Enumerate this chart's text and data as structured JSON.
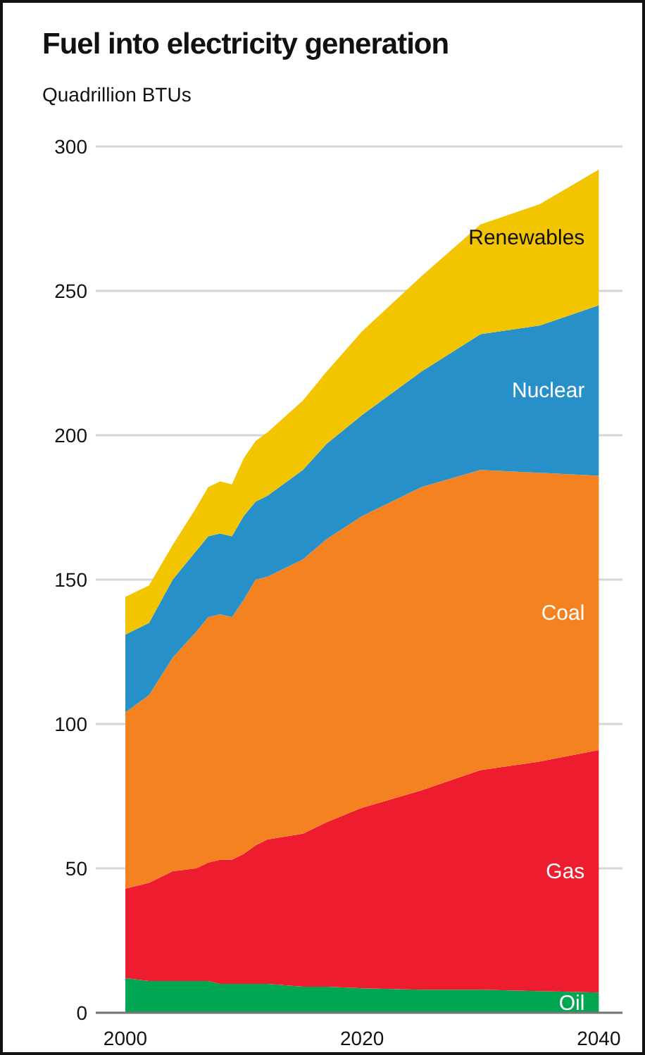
{
  "chart_data": {
    "type": "area",
    "stacked": true,
    "title": "Fuel into electricity generation",
    "subtitle": "Quadrillion BTUs",
    "x": [
      2000,
      2002,
      2004,
      2006,
      2007,
      2008,
      2009,
      2010,
      2011,
      2012,
      2015,
      2017,
      2020,
      2025,
      2030,
      2035,
      2040
    ],
    "xlim": [
      1997.5,
      2042
    ],
    "xticks": [
      2000,
      2020,
      2040
    ],
    "ylim": [
      0,
      300
    ],
    "yticks": [
      0,
      50,
      100,
      150,
      200,
      250,
      300
    ],
    "grid": "y",
    "series": [
      {
        "name": "Oil",
        "color": "#00a651",
        "values": [
          12,
          11,
          11,
          11,
          11,
          10,
          10,
          10,
          10,
          10,
          9,
          9,
          8.5,
          8,
          8,
          7.5,
          7
        ]
      },
      {
        "name": "Gas",
        "color": "#ed1c2e",
        "values": [
          31,
          34,
          38,
          39,
          41,
          43,
          43,
          45,
          48,
          50,
          53,
          57,
          62.5,
          69,
          76,
          79.5,
          84
        ]
      },
      {
        "name": "Coal",
        "color": "#f58220",
        "values": [
          61,
          65,
          74,
          82,
          85,
          85,
          84,
          88,
          92,
          91,
          95,
          98,
          101,
          105,
          104,
          100,
          95
        ]
      },
      {
        "name": "Nuclear",
        "color": "#2790c8",
        "values": [
          27,
          25,
          27,
          28,
          28,
          28,
          28,
          29,
          27,
          28,
          31,
          33,
          35,
          40,
          47,
          51,
          59
        ]
      },
      {
        "name": "Renewables",
        "color": "#f2c500",
        "values": [
          13,
          13,
          12,
          15,
          17,
          18,
          18,
          20,
          21,
          22,
          24,
          25,
          29,
          33,
          38,
          42,
          47
        ]
      }
    ]
  }
}
